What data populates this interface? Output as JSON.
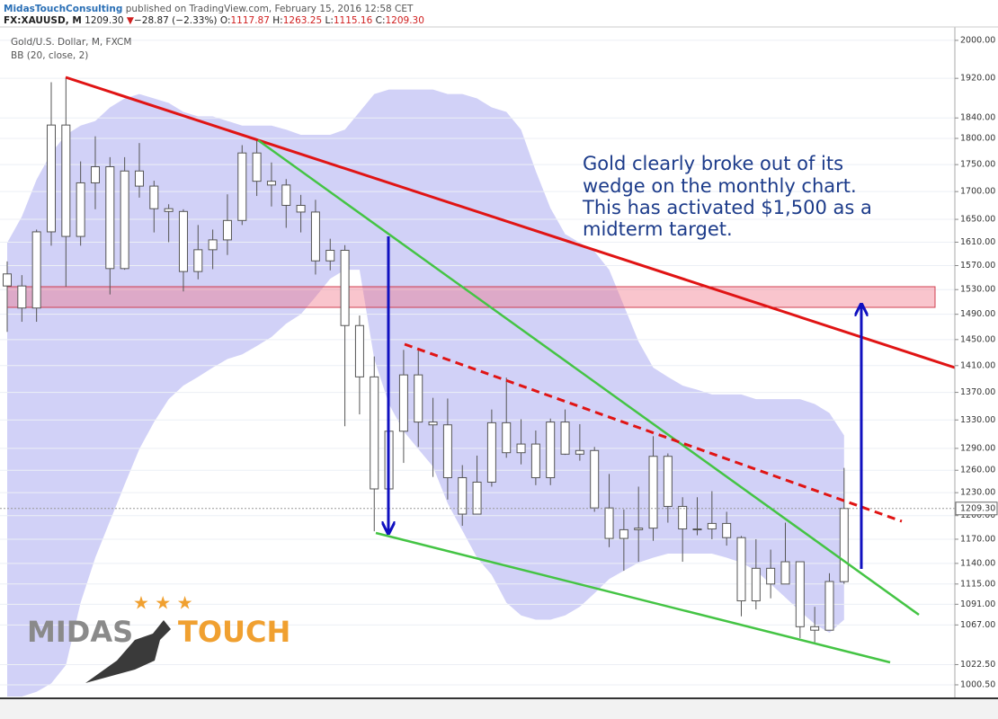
{
  "header": {
    "publisher": "MidasTouchConsulting",
    "published": "published on TradingView.com, February 15, 2016 12:58 CET",
    "symbol": "FX:XAUUSD, M",
    "price": "1209.30",
    "arrow": "▼",
    "change": "−28.87 (−2.33%)",
    "ohlc": [
      [
        "O:",
        "1117.87"
      ],
      [
        "H:",
        "1263.25"
      ],
      [
        "L:",
        "1115.16"
      ],
      [
        "C:",
        "1209.30"
      ]
    ]
  },
  "chart_data": {
    "type": "candlestick",
    "title": "Gold/U.S. Dollar, M, FXCM",
    "indicator": "BB (20, close, 2)",
    "log": true,
    "grid": true,
    "ylim": [
      988,
      2029
    ],
    "yticks": [
      {
        "value": 2000,
        "label": "2000.00"
      },
      {
        "value": 1920,
        "label": "1920.00"
      },
      {
        "value": 1840,
        "label": "1840.00"
      },
      {
        "value": 1800,
        "label": "1800.00"
      },
      {
        "value": 1750,
        "label": "1750.00"
      },
      {
        "value": 1700,
        "label": "1700.00"
      },
      {
        "value": 1650,
        "label": "1650.00"
      },
      {
        "value": 1610,
        "label": "1610.00"
      },
      {
        "value": 1570,
        "label": "1570.00"
      },
      {
        "value": 1530,
        "label": "1530.00"
      },
      {
        "value": 1490,
        "label": "1490.00"
      },
      {
        "value": 1450,
        "label": "1450.00"
      },
      {
        "value": 1410,
        "label": "1410.00"
      },
      {
        "value": 1370,
        "label": "1370.00"
      },
      {
        "value": 1330,
        "label": "1330.00"
      },
      {
        "value": 1290,
        "label": "1290.00"
      },
      {
        "value": 1260,
        "label": "1260.00"
      },
      {
        "value": 1230,
        "label": "1230.00"
      },
      {
        "value": 1200,
        "label": "1200.00"
      },
      {
        "value": 1170,
        "label": "1170.00"
      },
      {
        "value": 1140,
        "label": "1140.00"
      },
      {
        "value": 1115,
        "label": "1115.00"
      },
      {
        "value": 1091,
        "label": "1091.00"
      },
      {
        "value": 1067,
        "label": "1067.00"
      },
      {
        "value": 1022.5,
        "label": "1022.50"
      },
      {
        "value": 1000.5,
        "label": "1000.50"
      }
    ],
    "candle_color": "#ffffff",
    "outline_color": "#555555",
    "band_color": "#c9c9f6",
    "open": [
      1556,
      1536,
      1500,
      1628,
      1826,
      1620,
      1716,
      1746,
      1565,
      1738,
      1710,
      1669,
      1664,
      1560,
      1597,
      1614,
      1648,
      1772,
      1719,
      1712,
      1675,
      1663,
      1578,
      1596,
      1472,
      1393,
      1235,
      1314,
      1396,
      1327,
      1323,
      1250,
      1202,
      1244,
      1326,
      1284,
      1296,
      1250,
      1327,
      1282,
      1287,
      1210,
      1171,
      1182,
      1184,
      1279,
      1212,
      1183,
      1183,
      1190,
      1172,
      1095,
      1134,
      1115,
      1142,
      1065,
      1061,
      1117.87
    ],
    "high": [
      1577,
      1554,
      1632,
      1912,
      1921,
      1756,
      1804,
      1764,
      1764,
      1791,
      1720,
      1677,
      1668,
      1640,
      1632,
      1695,
      1787,
      1796,
      1754,
      1723,
      1694,
      1685,
      1616,
      1605,
      1488,
      1424,
      1348,
      1434,
      1434,
      1362,
      1361,
      1267,
      1280,
      1345,
      1392,
      1331,
      1315,
      1332,
      1345,
      1324,
      1292,
      1255,
      1208,
      1238,
      1307,
      1283,
      1224,
      1224,
      1232,
      1205,
      1174,
      1170,
      1157,
      1191,
      1142,
      1088,
      1128,
      1263.25
    ],
    "low": [
      1462,
      1478,
      1478,
      1604,
      1535,
      1604,
      1668,
      1522,
      1563,
      1689,
      1627,
      1610,
      1527,
      1547,
      1564,
      1588,
      1640,
      1692,
      1673,
      1635,
      1627,
      1555,
      1562,
      1321,
      1338,
      1180,
      1208,
      1270,
      1292,
      1251,
      1221,
      1187,
      1202,
      1238,
      1277,
      1268,
      1240,
      1240,
      1281,
      1273,
      1205,
      1160,
      1131,
      1142,
      1168,
      1191,
      1142,
      1175,
      1170,
      1162,
      1077,
      1085,
      1098,
      1115,
      1052,
      1046,
      1061,
      1115.16
    ],
    "close": [
      1536,
      1500,
      1628,
      1826,
      1620,
      1716,
      1746,
      1565,
      1738,
      1710,
      1669,
      1664,
      1560,
      1597,
      1614,
      1648,
      1772,
      1719,
      1712,
      1675,
      1663,
      1578,
      1596,
      1472,
      1393,
      1235,
      1314,
      1396,
      1327,
      1323,
      1250,
      1202,
      1244,
      1326,
      1284,
      1296,
      1250,
      1327,
      1282,
      1287,
      1210,
      1171,
      1182,
      1184,
      1279,
      1212,
      1183,
      1183,
      1190,
      1172,
      1095,
      1134,
      1115,
      1142,
      1065,
      1061,
      1118,
      1209.3
    ],
    "bollinger": {
      "upper": [
        1609,
        1655,
        1722,
        1772,
        1807,
        1825,
        1834,
        1861,
        1879,
        1888,
        1879,
        1870,
        1852,
        1843,
        1843,
        1834,
        1825,
        1825,
        1825,
        1817,
        1807,
        1807,
        1807,
        1817,
        1852,
        1888,
        1897,
        1897,
        1897,
        1897,
        1888,
        1888,
        1879,
        1861,
        1852,
        1817,
        1738,
        1670,
        1624,
        1609,
        1594,
        1563,
        1504,
        1447,
        1407,
        1393,
        1380,
        1374,
        1367,
        1367,
        1367,
        1360,
        1360,
        1360,
        1360,
        1353,
        1340,
        1308
      ],
      "lower": [
        988,
        988,
        993,
        1002,
        1022,
        1093,
        1147,
        1193,
        1241,
        1289,
        1327,
        1360,
        1380,
        1393,
        1407,
        1420,
        1427,
        1440,
        1454,
        1475,
        1490,
        1518,
        1548,
        1563,
        1563,
        1420,
        1353,
        1314,
        1289,
        1265,
        1216,
        1181,
        1147,
        1126,
        1093,
        1078,
        1073,
        1073,
        1078,
        1088,
        1104,
        1121,
        1131,
        1141,
        1147,
        1152,
        1152,
        1152,
        1152,
        1147,
        1141,
        1131,
        1115,
        1099,
        1083,
        1068,
        1058,
        1073
      ]
    },
    "last_price": {
      "value": 1209.3,
      "label": "1209.30"
    },
    "annotation": [
      "Gold clearly broke out of its",
      "wedge on the monthly chart.",
      "This has activated $1,500 as a",
      "midterm target."
    ],
    "watermark": [
      "MIDAS",
      "TOUCH"
    ]
  }
}
